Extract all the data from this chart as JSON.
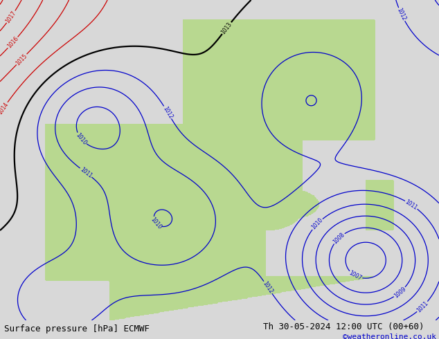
{
  "title_left": "Surface pressure [hPa] ECMWF",
  "title_right": "Th 30-05-2024 12:00 UTC (00+60)",
  "credit": "©weatheronline.co.uk",
  "bg_color": "#d8d8d8",
  "land_color": "#b8d890",
  "red_contour_color": "#cc0000",
  "blue_contour_color": "#0000cc",
  "black_contour_color": "#000000",
  "figsize": [
    6.34,
    4.9
  ],
  "dpi": 100,
  "bottom_bar_color": "#c8d8b8",
  "bottom_bar_height": 0.055,
  "title_fontsize": 9,
  "credit_fontsize": 8,
  "credit_color": "#0000cc",
  "xlim": [
    -12,
    12
  ],
  "ylim": [
    34,
    50
  ]
}
